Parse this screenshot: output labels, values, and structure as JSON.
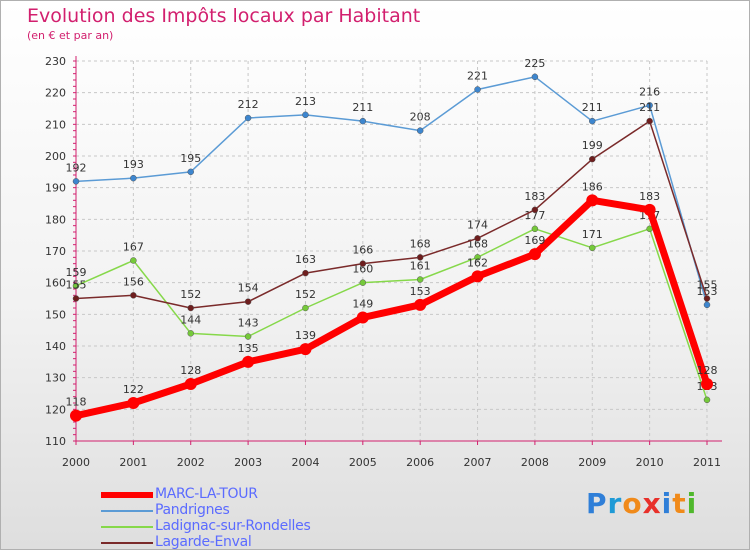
{
  "chart_data": {
    "type": "line",
    "title": "Evolution des Impôts locaux par Habitant",
    "subtitle": "(en € et par an)",
    "xlabel": "",
    "ylabel": "",
    "categories": [
      "2000",
      "2001",
      "2002",
      "2003",
      "2004",
      "2005",
      "2006",
      "2007",
      "2008",
      "2009",
      "2010",
      "2011"
    ],
    "ylim": [
      110,
      230
    ],
    "yticks": [
      110,
      120,
      130,
      140,
      150,
      160,
      170,
      180,
      190,
      200,
      210,
      220,
      230
    ],
    "grid": true,
    "legend_position": "bottom-left",
    "series": [
      {
        "name": "Pandrignes",
        "color": "#5b9bd5",
        "dot": "#3d86cf",
        "values": [
          192,
          193,
          195,
          212,
          213,
          211,
          208,
          221,
          225,
          211,
          216,
          153
        ]
      },
      {
        "name": "Ladignac-sur-Rondelles",
        "color": "#86d84a",
        "dot": "#75c93a",
        "values": [
          159,
          167,
          144,
          143,
          152,
          160,
          161,
          168,
          177,
          171,
          177,
          123
        ]
      },
      {
        "name": "Lagarde-Enval",
        "color": "#7a2a2a",
        "dot": "#6e1e1e",
        "values": [
          155,
          156,
          152,
          154,
          163,
          166,
          168,
          174,
          183,
          199,
          211,
          155
        ]
      },
      {
        "name": "MARC-LA-TOUR",
        "color": "#ff0000",
        "dot": "#ff0000",
        "values": [
          118,
          122,
          128,
          135,
          139,
          149,
          153,
          162,
          169,
          186,
          183,
          128
        ]
      }
    ]
  },
  "legend": [
    {
      "label": "MARC-LA-TOUR",
      "color": "#ff0000",
      "thickness": "6"
    },
    {
      "label": "Pandrignes",
      "color": "#5b9bd5",
      "thickness": "2"
    },
    {
      "label": "Ladignac-sur-Rondelles",
      "color": "#86d84a",
      "thickness": "2"
    },
    {
      "label": "Lagarde-Enval",
      "color": "#7a2a2a",
      "thickness": "2"
    }
  ],
  "logo": {
    "letters": [
      "P",
      "r",
      "o",
      "x",
      "i",
      "t",
      "i"
    ],
    "colors": [
      "#2f7fd8",
      "#1e9ad6",
      "#f08a1a",
      "#e8302a",
      "#2f7fd8",
      "#f08a1a",
      "#4fb82c"
    ]
  }
}
